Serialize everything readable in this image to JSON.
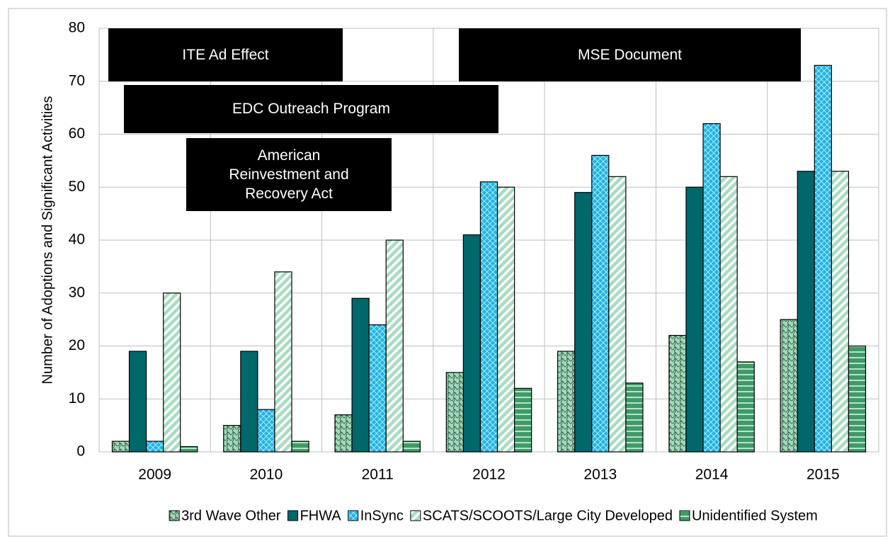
{
  "chart_data": {
    "type": "bar",
    "y_label": "Number of Adoptions and Significant Activities",
    "categories": [
      "2009",
      "2010",
      "2011",
      "2012",
      "2013",
      "2014",
      "2015"
    ],
    "series": [
      {
        "name": "3rd Wave Other",
        "color": "#9fd9b9",
        "values": [
          2,
          5,
          7,
          15,
          19,
          22,
          25
        ]
      },
      {
        "name": "FHWA",
        "color": "#00676b",
        "values": [
          19,
          19,
          29,
          41,
          49,
          50,
          53
        ]
      },
      {
        "name": "InSync",
        "color": "#1fb5e3",
        "values": [
          2,
          8,
          24,
          51,
          56,
          62,
          73
        ]
      },
      {
        "name": "SCATS/SCOOTS/Large City Developed",
        "color": "#a8dcc0",
        "values": [
          30,
          34,
          40,
          50,
          52,
          52,
          53
        ]
      },
      {
        "name": "Unidentified System",
        "color": "#3f9a68",
        "values": [
          1,
          2,
          2,
          12,
          13,
          17,
          20
        ]
      }
    ],
    "annotations": [
      "ITE Ad Effect",
      "MSE Document",
      "EDC Outreach Program",
      "American Reinvestment and Recovery Act"
    ],
    "ylim": [
      0,
      80
    ],
    "yticks": [
      0,
      10,
      20,
      30,
      40,
      50,
      60,
      70,
      80
    ],
    "grid": true
  }
}
